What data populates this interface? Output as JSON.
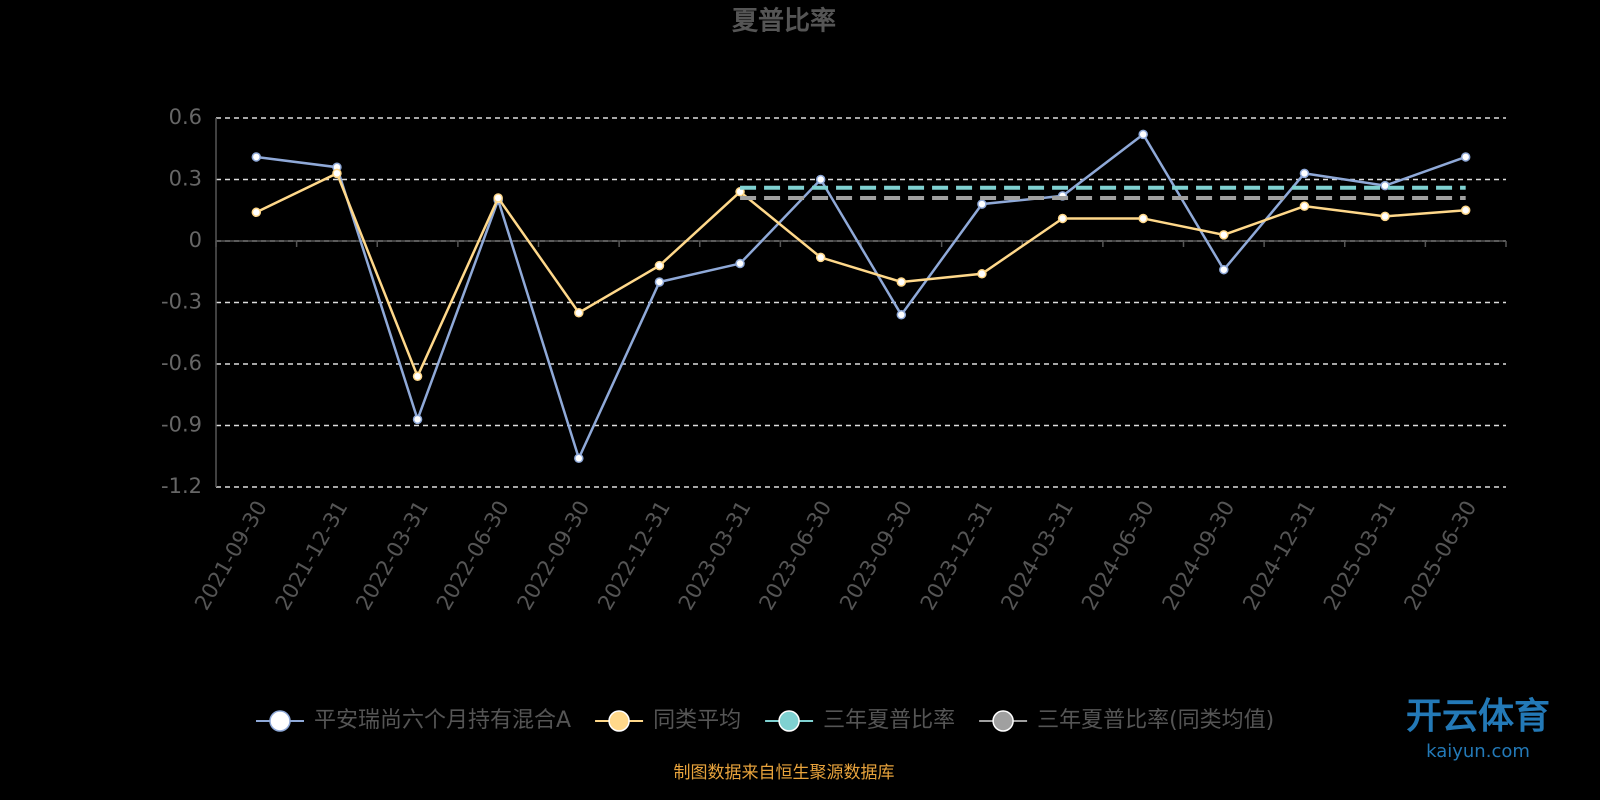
{
  "chart_data": {
    "type": "line",
    "title": "夏普比率",
    "categories": [
      "2021-09-30",
      "2021-12-31",
      "2022-03-31",
      "2022-06-30",
      "2022-09-30",
      "2022-12-31",
      "2023-03-31",
      "2023-06-30",
      "2023-09-30",
      "2023-12-31",
      "2024-03-31",
      "2024-06-30",
      "2024-09-30",
      "2024-12-31",
      "2025-03-31",
      "2025-06-30"
    ],
    "series": [
      {
        "name": "平安瑞尚六个月持有混合A",
        "color": "#8fa9d8",
        "values": [
          0.41,
          0.36,
          -0.87,
          0.2,
          -1.06,
          -0.2,
          -0.11,
          0.3,
          -0.36,
          0.18,
          0.22,
          0.52,
          -0.14,
          0.33,
          0.27,
          0.41
        ]
      },
      {
        "name": "同类平均",
        "color": "#ffd88a",
        "values": [
          0.14,
          0.33,
          -0.66,
          0.21,
          -0.35,
          -0.12,
          0.24,
          -0.08,
          -0.2,
          -0.16,
          0.11,
          0.11,
          0.03,
          0.17,
          0.12,
          0.15
        ]
      },
      {
        "name": "三年夏普比率",
        "color": "#7fd1d1",
        "dashed": true,
        "values": [
          null,
          null,
          null,
          null,
          null,
          null,
          0.26,
          0.26,
          0.26,
          0.26,
          0.26,
          0.26,
          0.26,
          0.26,
          0.26,
          0.26
        ]
      },
      {
        "name": "三年夏普比率(同类均值)",
        "color": "#a0a0a0",
        "dashed": true,
        "values": [
          null,
          null,
          null,
          null,
          null,
          null,
          0.21,
          0.21,
          0.21,
          0.21,
          0.21,
          0.21,
          0.21,
          0.21,
          0.21,
          0.21
        ]
      }
    ],
    "ylim": [
      -1.2,
      0.6
    ],
    "yticks": [
      0.6,
      0.3,
      0,
      -0.3,
      -0.6,
      -0.9,
      -1.2
    ],
    "grid": true,
    "legend": "bottom",
    "source": "制图数据来自恒生聚源数据库",
    "watermark": {
      "title": "开云体育",
      "subtitle": "kaiyun.com"
    }
  }
}
